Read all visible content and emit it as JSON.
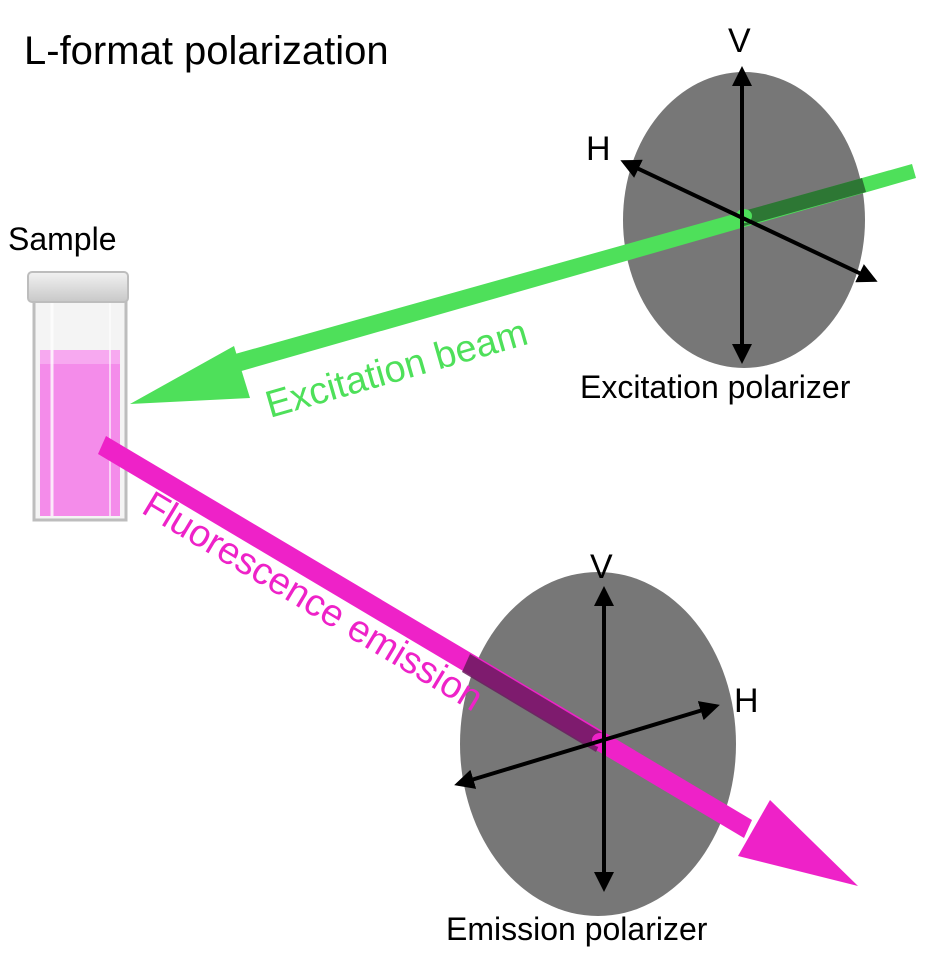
{
  "title": "L-format polarization",
  "sample": {
    "label": "Sample"
  },
  "excitation": {
    "beam_label": "Excitation beam",
    "polarizer_label": "Excitation polarizer",
    "v_label": "V",
    "h_label": "H"
  },
  "emission": {
    "beam_label": "Fluorescence emission",
    "polarizer_label": "Emission polarizer",
    "v_label": "V",
    "h_label": "H"
  },
  "colors": {
    "excitation_beam": "#4ee05a",
    "emission_beam": "#ee22c8",
    "polarizer_disc": "#777777",
    "sample_liquid": "#f48cea",
    "axis": "#000000"
  }
}
